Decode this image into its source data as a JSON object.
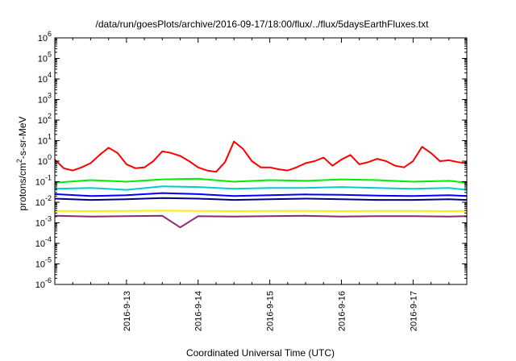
{
  "chart_data": {
    "type": "line",
    "title": "/data/run/goesPlots/archive/2016-09-17/18:00/flux/../flux/5daysEarthFluxes.txt",
    "xlabel": "Coordinated Universal Time (UTC)",
    "ylabel": {
      "prefix": "protons/cm",
      "superscript": "2",
      "suffix": "-s-sr-MeV"
    },
    "y_scale": "log",
    "ylim": [
      1e-06,
      1000000.0
    ],
    "y_ticks": [
      {
        "base": "10",
        "exp": "-6",
        "value": 1e-06
      },
      {
        "base": "10",
        "exp": "-5",
        "value": 1e-05
      },
      {
        "base": "10",
        "exp": "-4",
        "value": 0.0001
      },
      {
        "base": "10",
        "exp": "-3",
        "value": 0.001
      },
      {
        "base": "10",
        "exp": "-2",
        "value": 0.01
      },
      {
        "base": "10",
        "exp": "-1",
        "value": 0.1
      },
      {
        "base": "10",
        "exp": "0",
        "value": 1
      },
      {
        "base": "10",
        "exp": "1",
        "value": 10
      },
      {
        "base": "10",
        "exp": "2",
        "value": 100
      },
      {
        "base": "10",
        "exp": "3",
        "value": 1000
      },
      {
        "base": "10",
        "exp": "4",
        "value": 10000
      },
      {
        "base": "10",
        "exp": "5",
        "value": 100000
      },
      {
        "base": "10",
        "exp": "6",
        "value": 1000000
      }
    ],
    "xlim": [
      "2016-09-12 00:00",
      "2016-09-17 18:00"
    ],
    "x_ticks": [
      {
        "label": "2016-9-13",
        "value": "2016-09-13 00:00"
      },
      {
        "label": "2016-9-14",
        "value": "2016-09-14 00:00"
      },
      {
        "label": "2016-9-15",
        "value": "2016-09-15 00:00"
      },
      {
        "label": "2016-9-16",
        "value": "2016-09-16 00:00"
      },
      {
        "label": "2016-9-17",
        "value": "2016-09-17 00:00"
      }
    ],
    "grid": false,
    "legend": "none",
    "series": [
      {
        "color": "#ff0000",
        "x": [
          "2016-09-12 00:00",
          "2016-09-12 03:00",
          "2016-09-12 06:00",
          "2016-09-12 09:00",
          "2016-09-12 12:00",
          "2016-09-12 15:00",
          "2016-09-12 18:00",
          "2016-09-12 21:00",
          "2016-09-13 00:00",
          "2016-09-13 03:00",
          "2016-09-13 06:00",
          "2016-09-13 09:00",
          "2016-09-13 12:00",
          "2016-09-13 15:00",
          "2016-09-13 18:00",
          "2016-09-13 21:00",
          "2016-09-14 00:00",
          "2016-09-14 03:00",
          "2016-09-14 06:00",
          "2016-09-14 09:00",
          "2016-09-14 12:00",
          "2016-09-14 15:00",
          "2016-09-14 18:00",
          "2016-09-14 21:00",
          "2016-09-15 00:00",
          "2016-09-15 03:00",
          "2016-09-15 06:00",
          "2016-09-15 09:00",
          "2016-09-15 12:00",
          "2016-09-15 15:00",
          "2016-09-15 18:00",
          "2016-09-15 21:00",
          "2016-09-16 00:00",
          "2016-09-16 03:00",
          "2016-09-16 06:00",
          "2016-09-16 09:00",
          "2016-09-16 12:00",
          "2016-09-16 15:00",
          "2016-09-16 18:00",
          "2016-09-16 21:00",
          "2016-09-17 00:00",
          "2016-09-17 03:00",
          "2016-09-17 06:00",
          "2016-09-17 09:00",
          "2016-09-17 12:00",
          "2016-09-17 15:00",
          "2016-09-17 18:00"
        ],
        "values": [
          1.2,
          0.45,
          0.35,
          0.5,
          0.8,
          2.0,
          4.5,
          2.5,
          0.7,
          0.45,
          0.5,
          1.0,
          3.0,
          2.5,
          1.8,
          1.0,
          0.5,
          0.35,
          0.3,
          0.9,
          9.0,
          4.0,
          1.0,
          0.5,
          0.5,
          0.4,
          0.35,
          0.5,
          0.8,
          1.0,
          1.5,
          0.6,
          1.2,
          2.0,
          0.7,
          0.9,
          1.3,
          1.0,
          0.6,
          0.5,
          1.0,
          5.0,
          2.5,
          1.0,
          1.1,
          0.9,
          0.8
        ]
      },
      {
        "color": "#00ee00",
        "x": [
          "2016-09-12 00:00",
          "2016-09-12 12:00",
          "2016-09-13 00:00",
          "2016-09-13 12:00",
          "2016-09-14 00:00",
          "2016-09-14 12:00",
          "2016-09-15 00:00",
          "2016-09-15 12:00",
          "2016-09-16 00:00",
          "2016-09-16 12:00",
          "2016-09-17 00:00",
          "2016-09-17 12:00",
          "2016-09-17 18:00"
        ],
        "values": [
          0.09,
          0.12,
          0.1,
          0.13,
          0.14,
          0.1,
          0.12,
          0.11,
          0.13,
          0.12,
          0.1,
          0.11,
          0.09
        ]
      },
      {
        "color": "#00cccc",
        "x": [
          "2016-09-12 00:00",
          "2016-09-12 12:00",
          "2016-09-13 00:00",
          "2016-09-13 12:00",
          "2016-09-14 00:00",
          "2016-09-14 12:00",
          "2016-09-15 00:00",
          "2016-09-15 12:00",
          "2016-09-16 00:00",
          "2016-09-16 12:00",
          "2016-09-17 00:00",
          "2016-09-17 12:00",
          "2016-09-17 18:00"
        ],
        "values": [
          0.045,
          0.05,
          0.04,
          0.06,
          0.055,
          0.045,
          0.05,
          0.05,
          0.055,
          0.05,
          0.045,
          0.05,
          0.04
        ]
      },
      {
        "color": "#0000ff",
        "x": [
          "2016-09-12 00:00",
          "2016-09-12 12:00",
          "2016-09-13 00:00",
          "2016-09-13 12:00",
          "2016-09-14 00:00",
          "2016-09-14 12:00",
          "2016-09-15 00:00",
          "2016-09-15 12:00",
          "2016-09-16 00:00",
          "2016-09-16 12:00",
          "2016-09-17 00:00",
          "2016-09-17 12:00",
          "2016-09-17 18:00"
        ],
        "values": [
          0.025,
          0.02,
          0.022,
          0.028,
          0.025,
          0.02,
          0.022,
          0.024,
          0.023,
          0.021,
          0.02,
          0.022,
          0.02
        ]
      },
      {
        "color": "#00008b",
        "x": [
          "2016-09-12 00:00",
          "2016-09-12 12:00",
          "2016-09-13 00:00",
          "2016-09-13 12:00",
          "2016-09-14 00:00",
          "2016-09-14 12:00",
          "2016-09-15 00:00",
          "2016-09-15 12:00",
          "2016-09-16 00:00",
          "2016-09-16 12:00",
          "2016-09-17 00:00",
          "2016-09-17 12:00",
          "2016-09-17 18:00"
        ],
        "values": [
          0.015,
          0.013,
          0.014,
          0.016,
          0.015,
          0.013,
          0.014,
          0.015,
          0.014,
          0.013,
          0.013,
          0.014,
          0.013
        ]
      },
      {
        "color": "#ffee00",
        "x": [
          "2016-09-12 00:00",
          "2016-09-12 12:00",
          "2016-09-13 00:00",
          "2016-09-13 12:00",
          "2016-09-14 00:00",
          "2016-09-14 12:00",
          "2016-09-15 00:00",
          "2016-09-15 12:00",
          "2016-09-16 00:00",
          "2016-09-16 12:00",
          "2016-09-17 00:00",
          "2016-09-17 12:00",
          "2016-09-17 18:00"
        ],
        "values": [
          0.0038,
          0.0037,
          0.0038,
          0.0039,
          0.0038,
          0.0037,
          0.0038,
          0.0038,
          0.0037,
          0.0038,
          0.0038,
          0.0037,
          0.0038
        ]
      },
      {
        "color": "#8b2a6b",
        "x": [
          "2016-09-12 00:00",
          "2016-09-12 12:00",
          "2016-09-13 00:00",
          "2016-09-13 12:00",
          "2016-09-13 18:00",
          "2016-09-14 00:00",
          "2016-09-14 12:00",
          "2016-09-15 00:00",
          "2016-09-15 12:00",
          "2016-09-16 00:00",
          "2016-09-16 12:00",
          "2016-09-17 00:00",
          "2016-09-17 12:00",
          "2016-09-17 18:00"
        ],
        "values": [
          0.0022,
          0.002,
          0.0021,
          0.0022,
          0.0006,
          0.0021,
          0.002,
          0.0021,
          0.0022,
          0.002,
          0.0021,
          0.0021,
          0.002,
          0.0021
        ]
      }
    ]
  }
}
